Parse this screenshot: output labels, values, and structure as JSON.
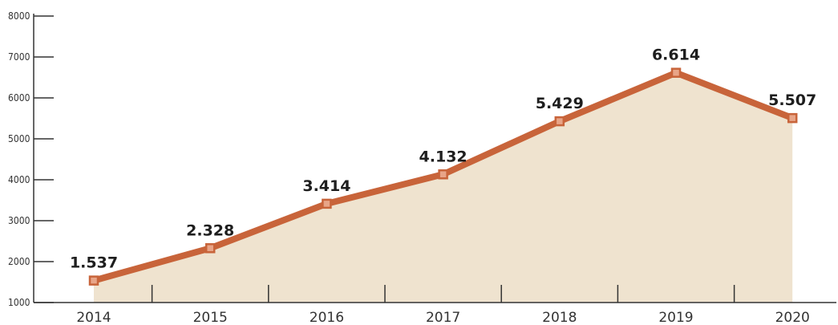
{
  "chart_data": {
    "type": "area",
    "title": "",
    "xlabel": "",
    "ylabel": "",
    "x": [
      "2014",
      "2015",
      "2016",
      "2017",
      "2018",
      "2019",
      "2020"
    ],
    "values": [
      1537,
      2328,
      3414,
      4132,
      5429,
      6614,
      5507
    ],
    "value_labels": [
      "1.537",
      "2.328",
      "3.414",
      "4.132",
      "5.429",
      "6.614",
      "5.507"
    ],
    "y_ticks": [
      "1000",
      "2000",
      "3000",
      "4000",
      "5000",
      "6000",
      "7000",
      "8000"
    ],
    "ylim": [
      1000,
      8000
    ],
    "grid": false,
    "legend": "none",
    "colors": {
      "line": "#c8643a",
      "fill": "#efe3cf",
      "marker_fill": "#e8a588",
      "axis": "#333333"
    }
  }
}
